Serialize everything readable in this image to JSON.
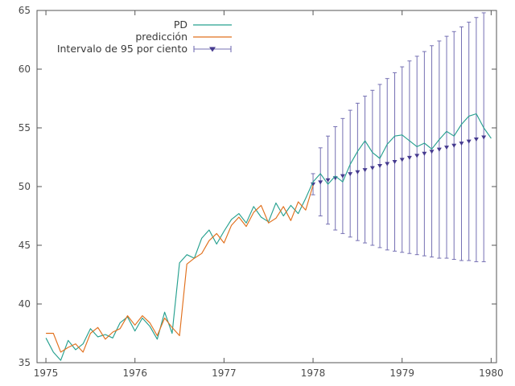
{
  "figure": {
    "background": "#ffffff",
    "border_color": "#555555",
    "tick_label_color": "#4a4a4a"
  },
  "chart_data": {
    "type": "line",
    "title": "",
    "xlabel": "",
    "ylabel": "",
    "xlim": [
      1974.9,
      1980.06
    ],
    "ylim": [
      35,
      65
    ],
    "xticks": [
      1975,
      1976,
      1977,
      1978,
      1979,
      1980
    ],
    "yticks": [
      35,
      40,
      45,
      50,
      55,
      60,
      65
    ],
    "grid": false,
    "legend_position": "top-left-inside",
    "series": [
      {
        "name": "PD",
        "type": "line",
        "color": "#26a08f",
        "x": [
          1975.0,
          1975.083,
          1975.167,
          1975.25,
          1975.333,
          1975.417,
          1975.5,
          1975.583,
          1975.667,
          1975.75,
          1975.833,
          1975.917,
          1976.0,
          1976.083,
          1976.167,
          1976.25,
          1976.333,
          1976.417,
          1976.5,
          1976.583,
          1976.667,
          1976.75,
          1976.833,
          1976.917,
          1977.0,
          1977.083,
          1977.167,
          1977.25,
          1977.333,
          1977.417,
          1977.5,
          1977.583,
          1977.667,
          1977.75,
          1977.833,
          1977.917,
          1978.0,
          1978.083,
          1978.167,
          1978.25,
          1978.333,
          1978.417,
          1978.5,
          1978.583,
          1978.667,
          1978.75,
          1978.833,
          1978.917,
          1979.0,
          1979.083,
          1979.167,
          1979.25,
          1979.333,
          1979.417,
          1979.5,
          1979.583,
          1979.667,
          1979.75,
          1979.833,
          1979.917,
          1980.0
        ],
        "y": [
          37.1,
          35.9,
          35.2,
          36.9,
          36.1,
          36.6,
          37.9,
          37.2,
          37.4,
          37.1,
          38.4,
          38.9,
          37.7,
          38.8,
          38.1,
          37.0,
          39.3,
          37.5,
          43.5,
          44.2,
          43.9,
          45.6,
          46.3,
          45.1,
          46.2,
          47.2,
          47.7,
          46.9,
          48.3,
          47.4,
          47.0,
          48.6,
          47.5,
          48.4,
          47.7,
          49.0,
          50.4,
          51.1,
          50.2,
          50.9,
          50.4,
          51.9,
          53.0,
          53.9,
          52.9,
          52.4,
          53.6,
          54.3,
          54.4,
          53.9,
          53.4,
          53.7,
          53.2,
          54.0,
          54.7,
          54.3,
          55.3,
          56.0,
          56.2,
          55.0,
          54.1
        ]
      },
      {
        "name": "predicción",
        "type": "line",
        "color": "#e1701d",
        "x": [
          1975.0,
          1975.083,
          1975.167,
          1975.25,
          1975.333,
          1975.417,
          1975.5,
          1975.583,
          1975.667,
          1975.75,
          1975.833,
          1975.917,
          1976.0,
          1976.083,
          1976.167,
          1976.25,
          1976.333,
          1976.417,
          1976.5,
          1976.583,
          1976.667,
          1976.75,
          1976.833,
          1976.917,
          1977.0,
          1977.083,
          1977.167,
          1977.25,
          1977.333,
          1977.417,
          1977.5,
          1977.583,
          1977.667,
          1977.75,
          1977.833,
          1977.917,
          1978.0
        ],
        "y": [
          37.5,
          37.5,
          35.9,
          36.3,
          36.6,
          35.9,
          37.5,
          38.0,
          37.0,
          37.6,
          37.9,
          39.0,
          38.2,
          39.0,
          38.4,
          37.3,
          38.8,
          38.0,
          37.3,
          43.4,
          43.9,
          44.3,
          45.4,
          46.0,
          45.2,
          46.7,
          47.4,
          46.6,
          47.8,
          48.4,
          46.9,
          47.3,
          48.3,
          47.1,
          48.7,
          48.0,
          50.1
        ]
      },
      {
        "name": "Intervalo de 95 por ciento",
        "type": "errorbar",
        "color": "#7570b3",
        "marker_color": "#453a8f",
        "x": [
          1978.0,
          1978.083,
          1978.167,
          1978.25,
          1978.333,
          1978.417,
          1978.5,
          1978.583,
          1978.667,
          1978.75,
          1978.833,
          1978.917,
          1979.0,
          1979.083,
          1979.167,
          1979.25,
          1979.333,
          1979.417,
          1979.5,
          1979.583,
          1979.667,
          1979.75,
          1979.833,
          1979.917
        ],
        "y": [
          50.2,
          50.37,
          50.55,
          50.72,
          50.9,
          51.07,
          51.24,
          51.42,
          51.59,
          51.77,
          51.94,
          52.11,
          52.29,
          52.46,
          52.63,
          52.81,
          52.98,
          53.16,
          53.33,
          53.5,
          53.68,
          53.85,
          54.03,
          54.2
        ],
        "low": [
          49.3,
          47.5,
          46.8,
          46.3,
          46.0,
          45.7,
          45.4,
          45.2,
          45.0,
          44.8,
          44.6,
          44.5,
          44.4,
          44.3,
          44.2,
          44.1,
          44.0,
          43.9,
          43.9,
          43.8,
          43.7,
          43.7,
          43.6,
          43.6
        ],
        "high": [
          51.1,
          53.3,
          54.3,
          55.1,
          55.8,
          56.5,
          57.1,
          57.7,
          58.2,
          58.7,
          59.2,
          59.7,
          60.2,
          60.7,
          61.1,
          61.5,
          62.0,
          62.4,
          62.8,
          63.2,
          63.6,
          64.0,
          64.4,
          64.8
        ]
      }
    ]
  }
}
